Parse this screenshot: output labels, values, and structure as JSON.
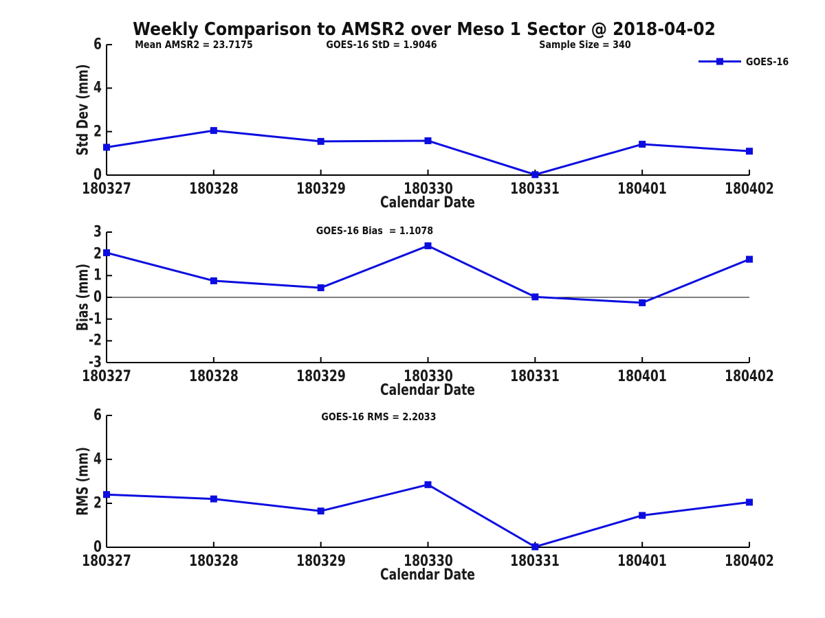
{
  "page": {
    "title": "Weekly Comparison to AMSR2 over Meso 1 Sector @ 2018-04-02",
    "background": "#ffffff",
    "accent_blue": "#0d0de0",
    "axis_color": "#000000",
    "text_color": "#1a1a1a"
  },
  "chart_data": [
    {
      "type": "line",
      "name": "std-dev",
      "categories": [
        "180327",
        "180328",
        "180329",
        "180330",
        "180331",
        "180401",
        "180402"
      ],
      "series": [
        {
          "name": "GOES-16",
          "values": [
            1.28,
            2.05,
            1.55,
            1.58,
            0.02,
            1.42,
            1.1
          ]
        }
      ],
      "title": "",
      "xlabel": "Calendar Date",
      "ylabel": "Std Dev (mm)",
      "ylim": [
        0,
        6
      ],
      "yticks": [
        0,
        2,
        4,
        6
      ],
      "grid": false,
      "zero_line": false,
      "marker": "square",
      "legend": {
        "label": "GOES-16",
        "position": "top-right"
      },
      "annotations": [
        {
          "text": "Mean AMSR2 = 23.7175"
        },
        {
          "text": "GOES-16 StD = 1.9046"
        },
        {
          "text": "Sample Size = 340"
        }
      ]
    },
    {
      "type": "line",
      "name": "bias",
      "categories": [
        "180327",
        "180328",
        "180329",
        "180330",
        "180331",
        "180401",
        "180402"
      ],
      "series": [
        {
          "name": "GOES-16",
          "values": [
            2.05,
            0.76,
            0.44,
            2.37,
            0.02,
            -0.25,
            1.75
          ]
        }
      ],
      "title": "",
      "xlabel": "Calendar Date",
      "ylabel": "Bias (mm)",
      "ylim": [
        -3,
        3
      ],
      "yticks": [
        3,
        2,
        1,
        0,
        -1,
        -2,
        -3
      ],
      "grid": false,
      "zero_line": true,
      "marker": "square",
      "annotations": [
        {
          "text": "GOES-16 Bias  = 1.1078"
        }
      ]
    },
    {
      "type": "line",
      "name": "rms",
      "categories": [
        "180327",
        "180328",
        "180329",
        "180330",
        "180331",
        "180401",
        "180402"
      ],
      "series": [
        {
          "name": "GOES-16",
          "values": [
            2.4,
            2.2,
            1.65,
            2.85,
            0.02,
            1.45,
            2.05
          ]
        }
      ],
      "title": "",
      "xlabel": "Calendar Date",
      "ylabel": "RMS (mm)",
      "ylim": [
        0,
        6
      ],
      "yticks": [
        0,
        2,
        4,
        6
      ],
      "grid": false,
      "zero_line": false,
      "marker": "square",
      "annotations": [
        {
          "text": "GOES-16 RMS = 2.2033"
        }
      ]
    }
  ]
}
